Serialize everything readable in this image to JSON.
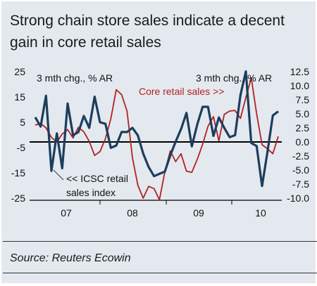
{
  "title": "Strong chain store sales indicate a decent gain in core retail sales",
  "source": "Source: Reuters Ecowin",
  "colors": {
    "core": "#b22222",
    "icsc": "#1d3d5c",
    "background": "#e3e9ef"
  },
  "chart_data": {
    "type": "line",
    "x_labels": [
      "07",
      "08",
      "09",
      "10"
    ],
    "left_axis": {
      "label": "3 mth chg., % AR",
      "ticks": [
        "25",
        "15",
        "5",
        "-5",
        "-15",
        "-25"
      ],
      "range": [
        -25,
        25
      ]
    },
    "right_axis": {
      "label": "3 mth chg., % AR",
      "ticks": [
        "12.5",
        "10.0",
        "7.5",
        "5.0",
        "2.5",
        "0.0",
        "-2.5",
        "-5.0",
        "-7.5",
        "-10.0"
      ],
      "range": [
        -10,
        12.5
      ]
    },
    "annotations": {
      "core": "Core retail sales >>",
      "icsc_line1": "<< ICSC retail",
      "icsc_line2": "sales index"
    },
    "series": [
      {
        "name": "Core retail sales",
        "axis": "right",
        "values": [
          3.0,
          3.3,
          2.5,
          0.8,
          0.0,
          1.4,
          2.2,
          0.7,
          2.6,
          1.8,
          0.1,
          -2.4,
          -1.7,
          0.6,
          4.1,
          9.3,
          8.4,
          5.5,
          -2.8,
          -7.7,
          -10.0,
          -7.9,
          -8.3,
          -10.3,
          -5.3,
          -1.6,
          -3.5,
          -2.1,
          -5.2,
          -5.4,
          -3.1,
          -0.4,
          2.8,
          4.5,
          0.2,
          4.9,
          5.5,
          5.6,
          4.2,
          7.9,
          11.4,
          5.0,
          -0.5,
          -1.2,
          -2.1,
          1.0
        ]
      },
      {
        "name": "ICSC retail sales index",
        "axis": "left",
        "values": [
          7.0,
          3.3,
          15.5,
          -14.2,
          0.6,
          -13.2,
          12.4,
          -0.1,
          1.1,
          7.5,
          2.8,
          15.1,
          5.0,
          4.4,
          -5.1,
          -4.2,
          1.2,
          1.1,
          2.8,
          -0.2,
          -7.4,
          -12.7,
          -16.3,
          -15.4,
          -14.5,
          -8.1,
          -2.7,
          2.3,
          8.7,
          -4.5,
          4.1,
          11.1,
          11.1,
          -0.4,
          6.9,
          2.8,
          -0.9,
          -0.1,
          15.7,
          25.1,
          -3.2,
          -4.4,
          -20.2,
          -6.7,
          7.7,
          9.3
        ]
      }
    ]
  }
}
